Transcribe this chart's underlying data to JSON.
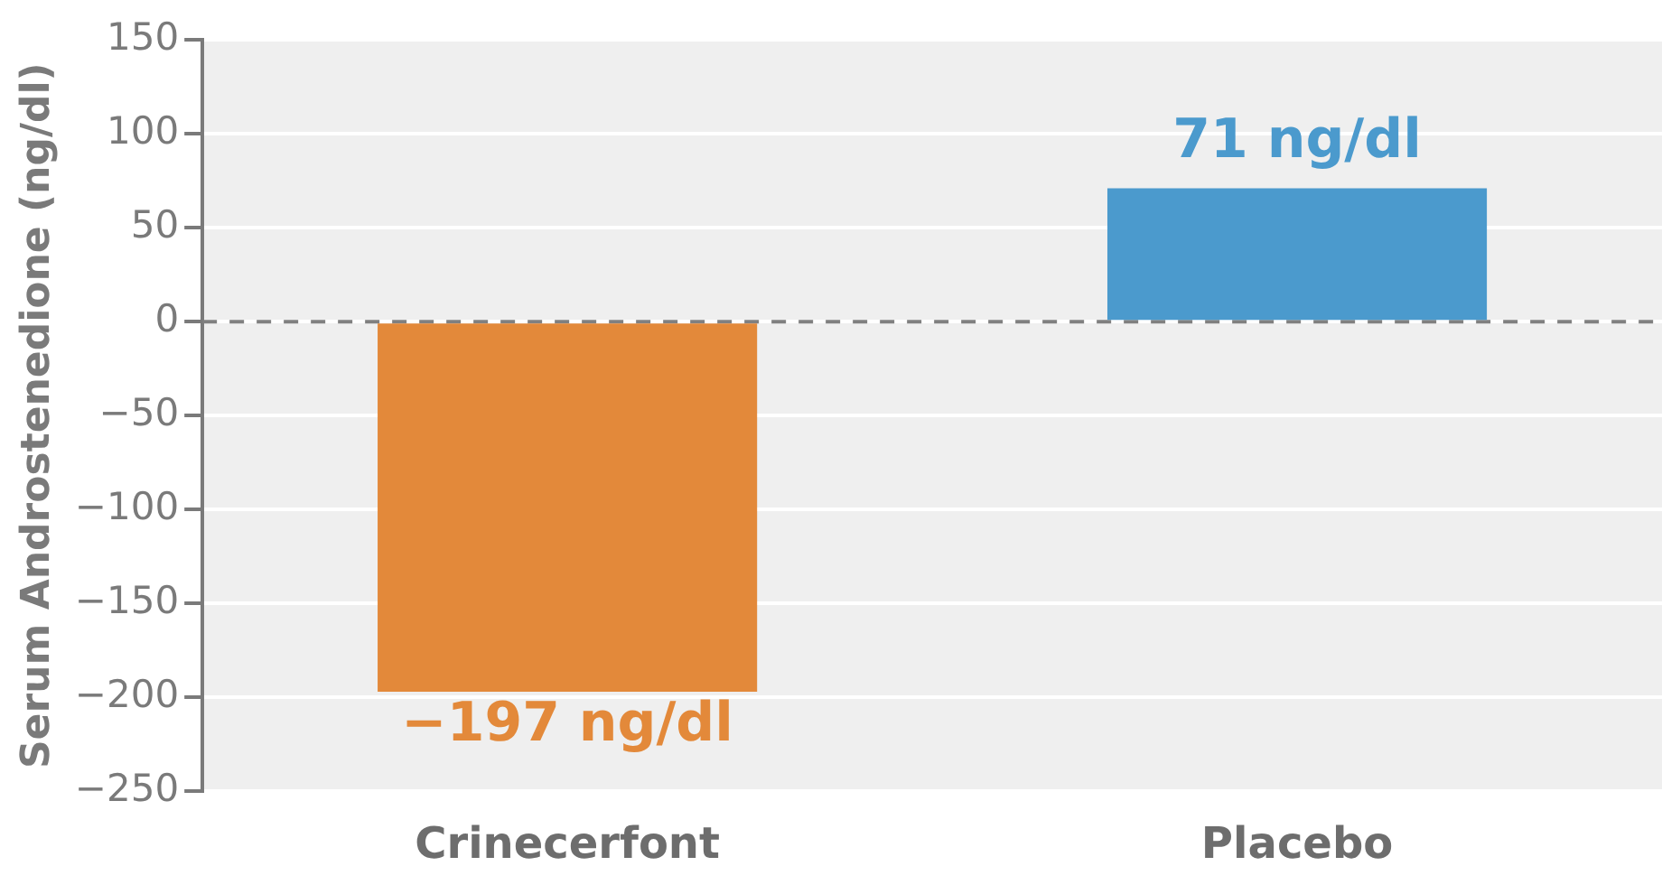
{
  "chart_data": {
    "type": "bar",
    "ylabel": "Serum Androstenedione (ng/dl)",
    "categories": [
      "Crinecerfont",
      "Placebo"
    ],
    "values": [
      -197,
      71
    ],
    "colors": [
      "#e3893a",
      "#4b9acd"
    ],
    "value_labels": [
      "−197 ng/dl",
      "71 ng/dl"
    ],
    "ylim": [
      -250,
      150
    ],
    "yticks": [
      {
        "value": -250,
        "label": "−250"
      },
      {
        "value": -200,
        "label": "−200"
      },
      {
        "value": -150,
        "label": "−150"
      },
      {
        "value": -100,
        "label": "−100"
      },
      {
        "value": -50,
        "label": "−50"
      },
      0,
      50,
      100,
      150
    ],
    "grid": "y",
    "ref_lines": [
      {
        "axis": "y",
        "value": 0,
        "color": "#808080",
        "line_style": "dashed"
      }
    ]
  }
}
